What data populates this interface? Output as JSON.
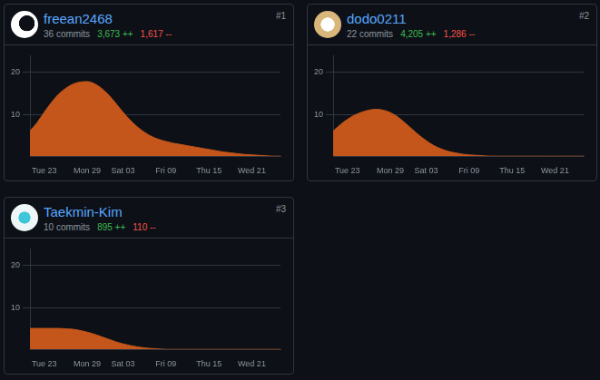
{
  "chart_data": [
    {
      "type": "area",
      "title": "freean2468",
      "rank": "#1",
      "subtitle": "36 commits",
      "additions": "3,673 ++",
      "deletions": "1,617 --",
      "categories": [
        null,
        null,
        "Tue 23",
        null,
        null,
        null,
        null,
        null,
        "Mon 29",
        null,
        null,
        null,
        null,
        "Sat 03",
        null,
        null,
        null,
        null,
        null,
        "Fri 09",
        null,
        null,
        null,
        null,
        null,
        "Thu 15",
        null,
        null,
        null,
        null,
        null,
        "Wed 21",
        null,
        null,
        null,
        null
      ],
      "values": [
        6,
        8,
        10.5,
        12.8,
        14.8,
        16.2,
        17.2,
        17.7,
        17.8,
        17.3,
        16.2,
        14.6,
        12.6,
        10.5,
        8.6,
        7,
        5.7,
        4.7,
        4,
        3.5,
        3.1,
        2.8,
        2.5,
        2.2,
        1.9,
        1.6,
        1.3,
        1,
        0.8,
        0.6,
        0.4,
        0.3,
        0.2,
        0.1,
        0,
        0
      ],
      "color": "#c4561c",
      "ylim": [
        0,
        24
      ],
      "yticks": [
        10,
        20
      ],
      "grid": true
    },
    {
      "type": "area",
      "title": "dodo0211",
      "rank": "#2",
      "subtitle": "22 commits",
      "additions": "4,205 ++",
      "deletions": "1,286 --",
      "categories": [
        null,
        null,
        "Tue 23",
        null,
        null,
        null,
        null,
        null,
        "Mon 29",
        null,
        null,
        null,
        null,
        "Sat 03",
        null,
        null,
        null,
        null,
        null,
        "Fri 09",
        null,
        null,
        null,
        null,
        null,
        "Thu 15",
        null,
        null,
        null,
        null,
        null,
        "Wed 21",
        null,
        null,
        null,
        null
      ],
      "values": [
        6,
        7.5,
        8.8,
        9.8,
        10.5,
        11,
        11.2,
        11,
        10.4,
        9.4,
        8,
        6.5,
        5,
        3.7,
        2.6,
        1.8,
        1.2,
        0.8,
        0.5,
        0.3,
        0.2,
        0.1,
        0,
        0,
        0,
        0,
        0,
        0,
        0,
        0,
        0,
        0,
        0,
        0,
        0,
        0
      ],
      "color": "#c4561c",
      "ylim": [
        0,
        24
      ],
      "yticks": [
        10,
        20
      ],
      "grid": true
    },
    {
      "type": "area",
      "title": "Taekmin-Kim",
      "rank": "#3",
      "subtitle": "10 commits",
      "additions": "895 ++",
      "deletions": "110 --",
      "categories": [
        null,
        null,
        "Tue 23",
        null,
        null,
        null,
        null,
        null,
        "Mon 29",
        null,
        null,
        null,
        null,
        "Sat 03",
        null,
        null,
        null,
        null,
        null,
        "Fri 09",
        null,
        null,
        null,
        null,
        null,
        "Thu 15",
        null,
        null,
        null,
        null,
        null,
        "Wed 21",
        null,
        null,
        null,
        null
      ],
      "values": [
        5,
        5,
        5,
        5,
        5,
        4.9,
        4.8,
        4.5,
        4.1,
        3.6,
        3,
        2.4,
        1.8,
        1.3,
        0.9,
        0.6,
        0.35,
        0.2,
        0.1,
        0,
        0,
        0,
        0,
        0,
        0,
        0,
        0,
        0,
        0,
        0,
        0,
        0,
        0,
        0,
        0,
        0
      ],
      "color": "#c4561c",
      "ylim": [
        0,
        24
      ],
      "yticks": [
        10,
        20
      ],
      "grid": true
    }
  ]
}
